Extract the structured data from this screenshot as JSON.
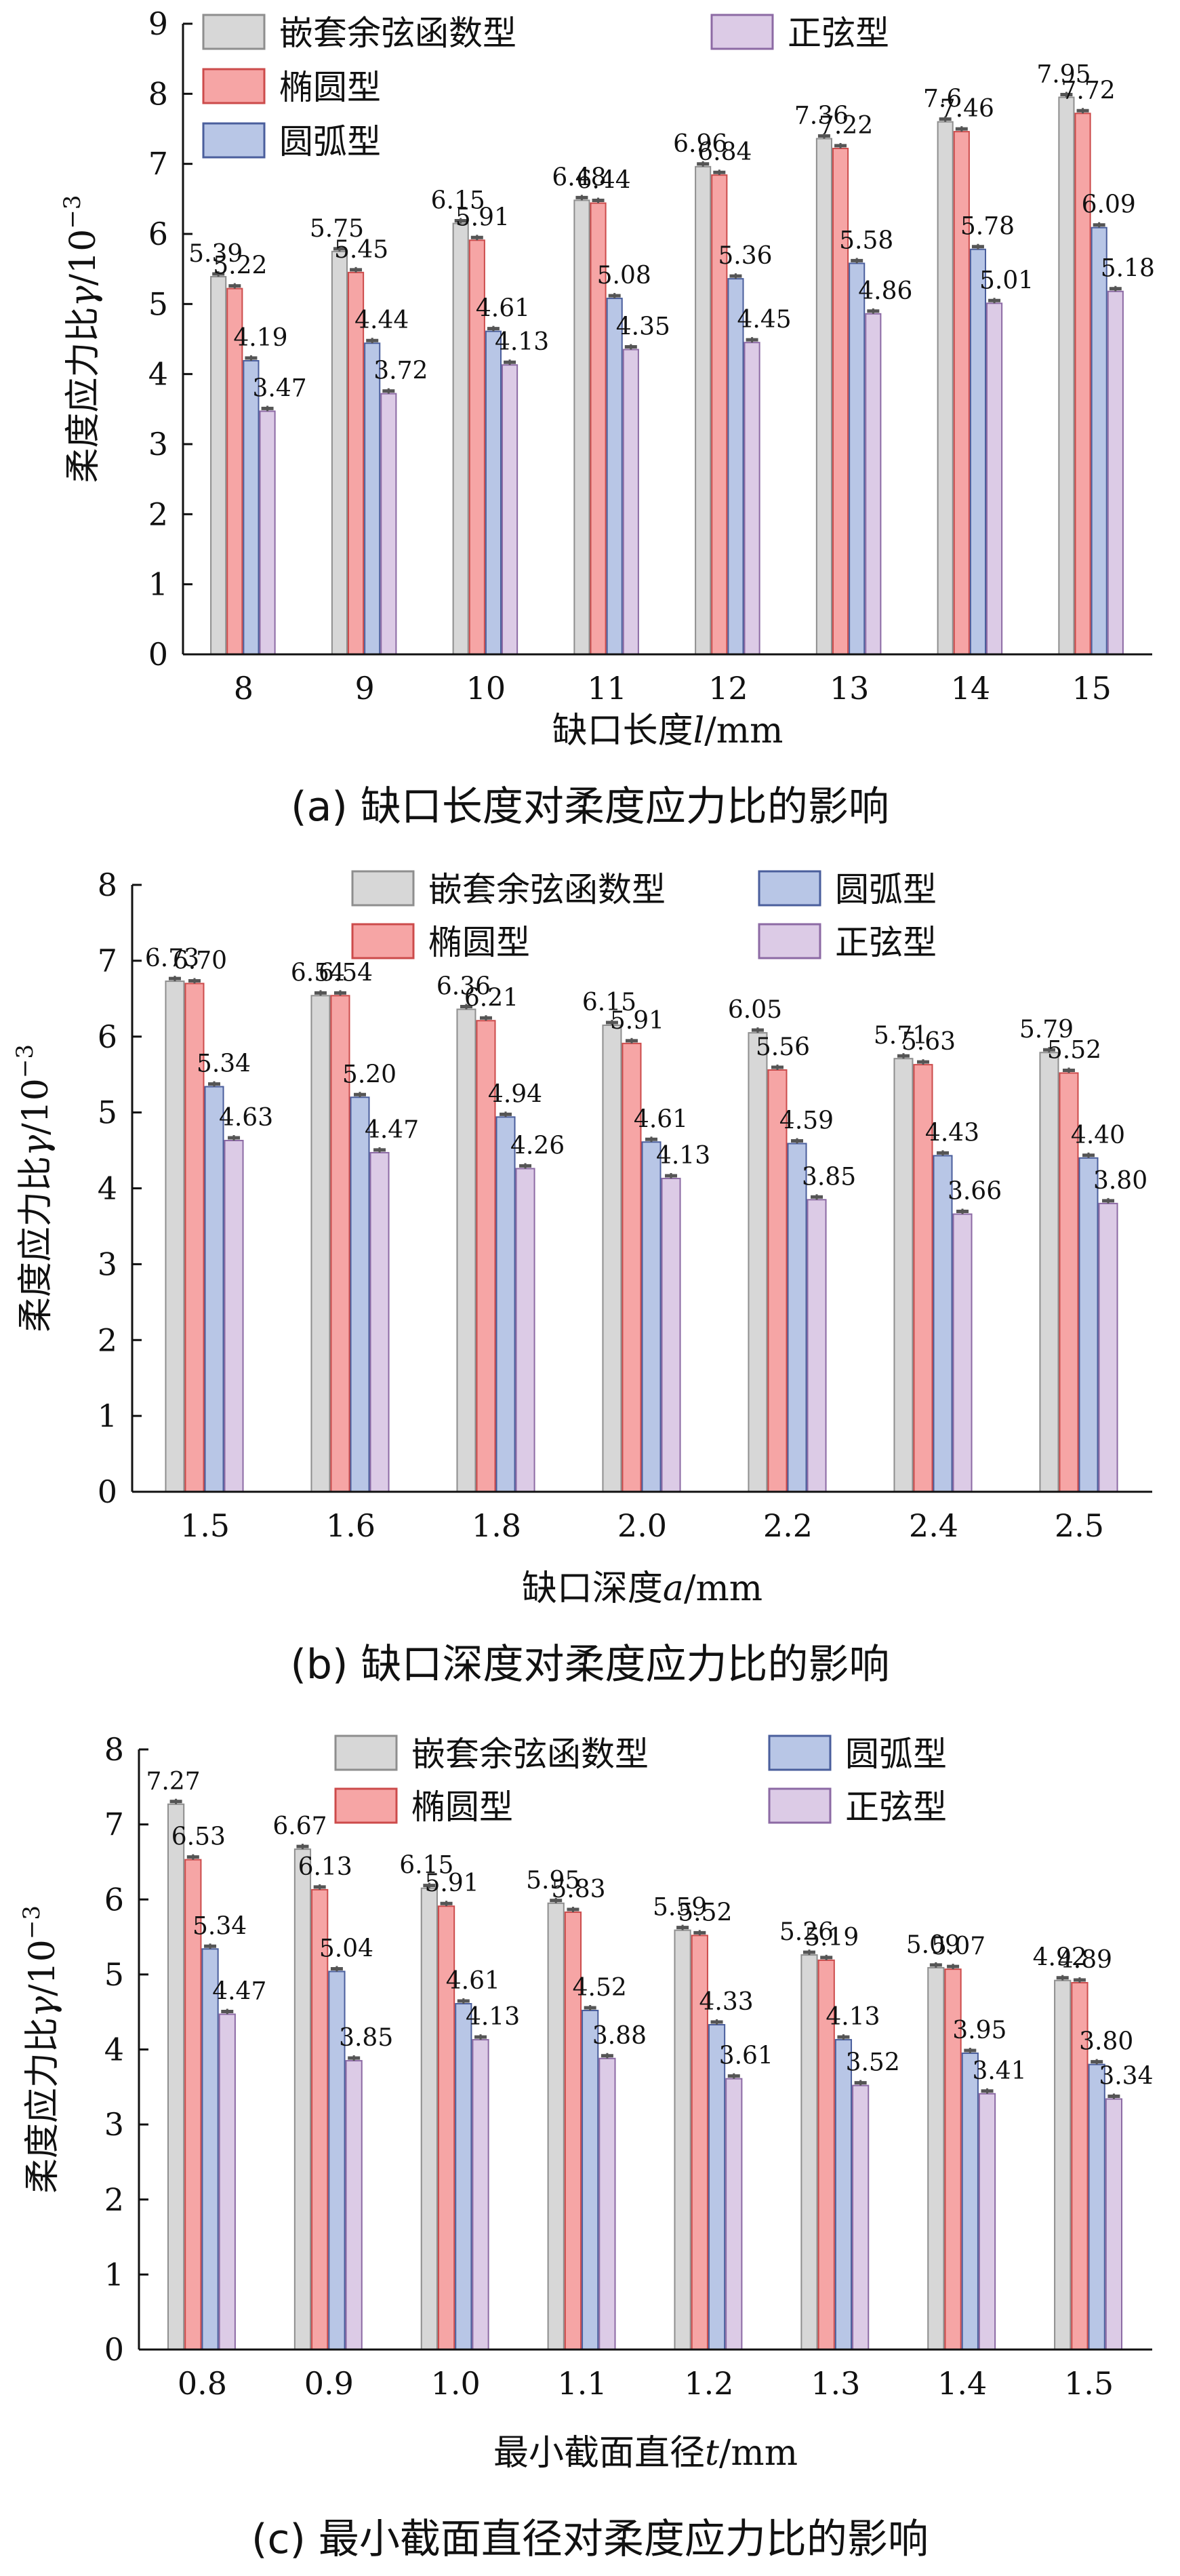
{
  "series_colors": {
    "嵌套余弦函数型": {
      "fill": "#d7d7d7",
      "stroke": "#8e8e8e"
    },
    "椭圆型": {
      "fill": "#f6a5a5",
      "stroke": "#cc4b4b"
    },
    "圆弧型": {
      "fill": "#b8c6e6",
      "stroke": "#4a5e9c"
    },
    "正弦型": {
      "fill": "#dccbe6",
      "stroke": "#8c6aa4"
    }
  },
  "chart_data": [
    {
      "type": "bar",
      "caption": "(a)  缺口长度对柔度应力比的影响",
      "xlabel": {
        "pre": "缺口长度",
        "var": "l",
        "post": "/mm"
      },
      "ylabel": {
        "pre": "柔度应力比",
        "var": "γ",
        "post": "/10",
        "sup": "−3"
      },
      "ylim": [
        0,
        9
      ],
      "yticks": [
        0,
        1,
        2,
        3,
        4,
        5,
        6,
        7,
        8,
        9
      ],
      "categories": [
        "8",
        "9",
        "10",
        "11",
        "12",
        "13",
        "14",
        "15"
      ],
      "legend_position": "top-left",
      "series": [
        {
          "name": "嵌套余弦函数型",
          "values": [
            5.39,
            5.75,
            6.15,
            6.48,
            6.96,
            7.36,
            7.6,
            7.95
          ]
        },
        {
          "name": "椭圆型",
          "values": [
            5.22,
            5.45,
            5.91,
            6.44,
            6.84,
            7.22,
            7.46,
            7.72
          ]
        },
        {
          "name": "圆弧型",
          "values": [
            4.19,
            4.44,
            4.61,
            5.08,
            5.36,
            5.58,
            5.78,
            6.09
          ]
        },
        {
          "name": "正弦型",
          "values": [
            3.47,
            3.72,
            4.13,
            4.35,
            4.45,
            4.86,
            5.01,
            5.18
          ]
        }
      ],
      "data_labels": [
        [
          "5.39",
          "5.75",
          "6.15",
          "6.48",
          "6.96",
          "7.36",
          "7.6",
          "7.95"
        ],
        [
          "5.22",
          "5.45",
          "5.91",
          "6.44",
          "6.84",
          "7.22",
          "7.46",
          "7.72"
        ],
        [
          "4.19",
          "4.44",
          "4.61",
          "5.08",
          "5.36",
          "5.58",
          "5.78",
          "6.09"
        ],
        [
          "3.47",
          "3.72",
          "4.13",
          "4.35",
          "4.45",
          "4.86",
          "5.01",
          "5.18"
        ]
      ]
    },
    {
      "type": "bar",
      "caption": "(b)  缺口深度对柔度应力比的影响",
      "xlabel": {
        "pre": "缺口深度",
        "var": "a",
        "post": "/mm"
      },
      "ylabel": {
        "pre": "柔度应力比",
        "var": "γ",
        "post": "/10",
        "sup": "−3"
      },
      "ylim": [
        0,
        8
      ],
      "yticks": [
        0,
        1,
        2,
        3,
        4,
        5,
        6,
        7,
        8
      ],
      "categories": [
        "1.5",
        "1.6",
        "1.8",
        "2.0",
        "2.2",
        "2.4",
        "2.5"
      ],
      "legend_position": "top-right",
      "series": [
        {
          "name": "嵌套余弦函数型",
          "values": [
            6.73,
            6.54,
            6.36,
            6.15,
            6.05,
            5.71,
            5.79
          ]
        },
        {
          "name": "椭圆型",
          "values": [
            6.7,
            6.54,
            6.21,
            5.91,
            5.56,
            5.63,
            5.52
          ]
        },
        {
          "name": "圆弧型",
          "values": [
            5.34,
            5.2,
            4.94,
            4.61,
            4.59,
            4.43,
            4.4
          ]
        },
        {
          "name": "正弦型",
          "values": [
            4.63,
            4.47,
            4.26,
            4.13,
            3.85,
            3.66,
            3.8
          ]
        }
      ],
      "data_labels": [
        [
          "6.73",
          "6.54",
          "6.36",
          "6.15",
          "6.05",
          "5.71",
          "5.79"
        ],
        [
          "6.70",
          "6.54",
          "6.21",
          "5.91",
          "5.56",
          "5.63",
          "5.52"
        ],
        [
          "5.34",
          "5.20",
          "4.94",
          "4.61",
          "4.59",
          "4.43",
          "4.40"
        ],
        [
          "4.63",
          "4.47",
          "4.26",
          "4.13",
          "3.85",
          "3.66",
          "3.80"
        ]
      ]
    },
    {
      "type": "bar",
      "caption": "(c)  最小截面直径对柔度应力比的影响",
      "xlabel": {
        "pre": "最小截面直径",
        "var": "t",
        "post": "/mm"
      },
      "ylabel": {
        "pre": "柔度应力比",
        "var": "γ",
        "post": "/10",
        "sup": "−3"
      },
      "ylim": [
        0,
        8
      ],
      "yticks": [
        0,
        1,
        2,
        3,
        4,
        5,
        6,
        7,
        8
      ],
      "categories": [
        "0.8",
        "0.9",
        "1.0",
        "1.1",
        "1.2",
        "1.3",
        "1.4",
        "1.5"
      ],
      "legend_position": "top-right",
      "series": [
        {
          "name": "嵌套余弦函数型",
          "values": [
            7.27,
            6.67,
            6.15,
            5.95,
            5.59,
            5.26,
            5.09,
            4.92
          ]
        },
        {
          "name": "椭圆型",
          "values": [
            6.53,
            6.13,
            5.91,
            5.83,
            5.52,
            5.19,
            5.07,
            4.89
          ]
        },
        {
          "name": "圆弧型",
          "values": [
            5.34,
            5.04,
            4.61,
            4.52,
            4.33,
            4.13,
            3.95,
            3.8
          ]
        },
        {
          "name": "正弦型",
          "values": [
            4.47,
            3.85,
            4.13,
            3.88,
            3.61,
            3.52,
            3.41,
            3.34
          ]
        }
      ],
      "data_labels": [
        [
          "7.27",
          "6.67",
          "6.15",
          "5.95",
          "5.59",
          "5.26",
          "5.09",
          "4.92"
        ],
        [
          "6.53",
          "6.13",
          "5.91",
          "5.83",
          "5.52",
          "5.19",
          "5.07",
          "4.89"
        ],
        [
          "5.34",
          "5.04",
          "4.61",
          "4.52",
          "4.33",
          "4.13",
          "3.95",
          "3.80"
        ],
        [
          "4.47",
          "3.85",
          "4.13",
          "3.88",
          "3.61",
          "3.52",
          "3.41",
          "3.34"
        ]
      ]
    }
  ]
}
